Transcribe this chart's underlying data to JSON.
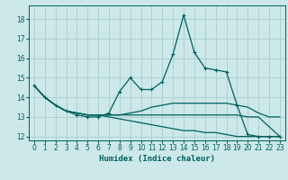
{
  "xlabel": "Humidex (Indice chaleur)",
  "ylabel": "",
  "background_color": "#cce8e8",
  "grid_color": "#b0d0d0",
  "line_color": "#006060",
  "xlim": [
    -0.5,
    23.5
  ],
  "ylim": [
    11.8,
    18.7
  ],
  "yticks": [
    12,
    13,
    14,
    15,
    16,
    17,
    18
  ],
  "xticks": [
    0,
    1,
    2,
    3,
    4,
    5,
    6,
    7,
    8,
    9,
    10,
    11,
    12,
    13,
    14,
    15,
    16,
    17,
    18,
    19,
    20,
    21,
    22,
    23
  ],
  "series1_x": [
    0,
    1,
    2,
    3,
    4,
    5,
    6,
    7,
    8,
    9,
    10,
    11,
    12,
    13,
    14,
    15,
    16,
    17,
    18,
    19,
    20,
    21,
    22,
    23
  ],
  "series1_y": [
    14.6,
    14.0,
    13.6,
    13.3,
    13.1,
    13.0,
    13.0,
    13.2,
    14.3,
    15.0,
    14.4,
    14.4,
    14.8,
    16.2,
    18.2,
    16.3,
    15.5,
    15.4,
    15.3,
    13.6,
    12.1,
    12.0,
    12.0,
    12.0
  ],
  "series2_x": [
    0,
    1,
    2,
    3,
    4,
    5,
    6,
    7,
    8,
    9,
    10,
    11,
    12,
    13,
    14,
    15,
    16,
    17,
    18,
    19,
    20,
    21,
    22,
    23
  ],
  "series2_y": [
    14.6,
    14.0,
    13.6,
    13.3,
    13.2,
    13.1,
    13.1,
    13.1,
    13.1,
    13.2,
    13.3,
    13.5,
    13.6,
    13.7,
    13.7,
    13.7,
    13.7,
    13.7,
    13.7,
    13.6,
    13.5,
    13.2,
    13.0,
    13.0
  ],
  "series3_x": [
    0,
    1,
    2,
    3,
    4,
    5,
    6,
    7,
    8,
    9,
    10,
    11,
    12,
    13,
    14,
    15,
    16,
    17,
    18,
    19,
    20,
    21,
    22,
    23
  ],
  "series3_y": [
    14.6,
    14.0,
    13.6,
    13.3,
    13.2,
    13.1,
    13.1,
    13.1,
    13.1,
    13.1,
    13.1,
    13.1,
    13.1,
    13.1,
    13.1,
    13.1,
    13.1,
    13.1,
    13.1,
    13.1,
    13.0,
    13.0,
    12.5,
    12.0
  ],
  "series4_x": [
    0,
    1,
    2,
    3,
    4,
    5,
    6,
    7,
    8,
    9,
    10,
    11,
    12,
    13,
    14,
    15,
    16,
    17,
    18,
    19,
    20,
    21,
    22,
    23
  ],
  "series4_y": [
    14.6,
    14.0,
    13.6,
    13.3,
    13.2,
    13.1,
    13.1,
    13.0,
    12.9,
    12.8,
    12.7,
    12.6,
    12.5,
    12.4,
    12.3,
    12.3,
    12.2,
    12.2,
    12.1,
    12.0,
    12.0,
    12.0,
    12.0,
    12.0
  ]
}
